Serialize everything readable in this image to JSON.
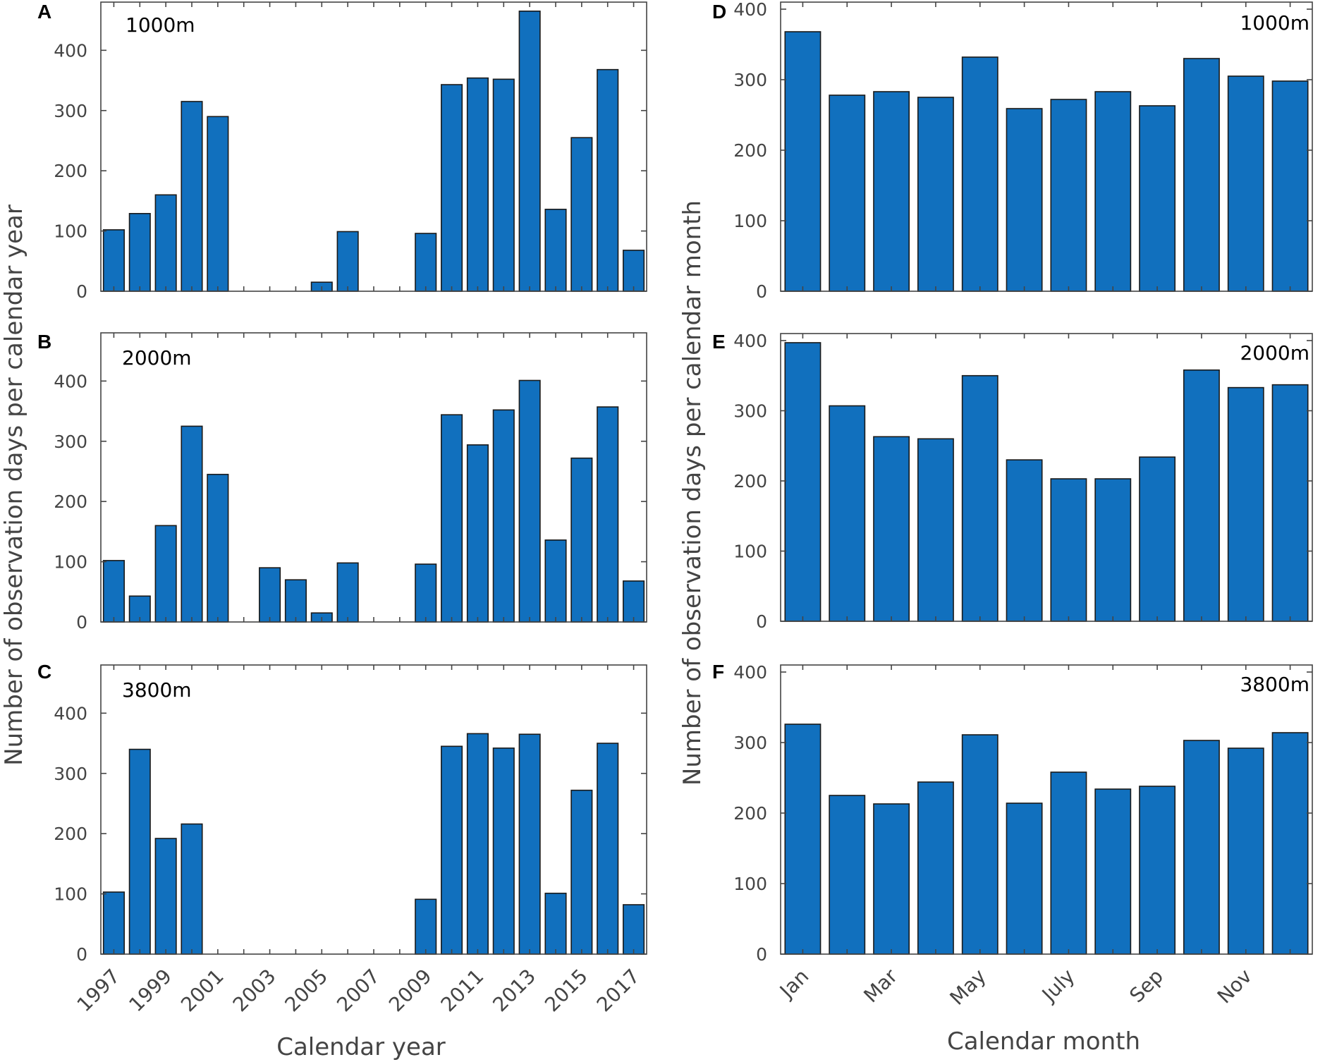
{
  "figure": {
    "left_ylabel": "Number of observation days per calendar year",
    "right_ylabel": "Number of observation days per calendar month",
    "left_xlabel": "Calendar year",
    "right_xlabel": "Calendar month"
  },
  "chart_data": [
    {
      "panel": "A",
      "type": "bar",
      "altitude": "1000m",
      "categories": [
        "1997",
        "1998",
        "1999",
        "2000",
        "2001",
        "2002",
        "2003",
        "2004",
        "2005",
        "2006",
        "2007",
        "2008",
        "2009",
        "2010",
        "2011",
        "2012",
        "2013",
        "2014",
        "2015",
        "2016",
        "2017"
      ],
      "tick_labels": [
        "1997",
        "1999",
        "2001",
        "2003",
        "2005",
        "2007",
        "2009",
        "2011",
        "2013",
        "2015",
        "2017"
      ],
      "values": [
        102,
        129,
        160,
        315,
        290,
        0,
        0,
        0,
        15,
        99,
        0,
        0,
        96,
        343,
        354,
        352,
        465,
        136,
        255,
        368,
        68
      ],
      "yticks": [
        0,
        100,
        200,
        300,
        400
      ],
      "ylim": [
        0,
        480
      ],
      "xlabel": "Calendar year",
      "ylabel": "Number of observation days per calendar year"
    },
    {
      "panel": "B",
      "type": "bar",
      "altitude": "2000m",
      "categories": [
        "1997",
        "1998",
        "1999",
        "2000",
        "2001",
        "2002",
        "2003",
        "2004",
        "2005",
        "2006",
        "2007",
        "2008",
        "2009",
        "2010",
        "2011",
        "2012",
        "2013",
        "2014",
        "2015",
        "2016",
        "2017"
      ],
      "tick_labels": [
        "1997",
        "1999",
        "2001",
        "2003",
        "2005",
        "2007",
        "2009",
        "2011",
        "2013",
        "2015",
        "2017"
      ],
      "values": [
        102,
        43,
        160,
        325,
        245,
        0,
        90,
        70,
        15,
        98,
        0,
        0,
        96,
        344,
        294,
        352,
        401,
        136,
        272,
        357,
        68
      ],
      "yticks": [
        0,
        100,
        200,
        300,
        400
      ],
      "ylim": [
        0,
        480
      ],
      "xlabel": "Calendar year",
      "ylabel": "Number of observation days per calendar year"
    },
    {
      "panel": "C",
      "type": "bar",
      "altitude": "3800m",
      "categories": [
        "1997",
        "1998",
        "1999",
        "2000",
        "2001",
        "2002",
        "2003",
        "2004",
        "2005",
        "2006",
        "2007",
        "2008",
        "2009",
        "2010",
        "2011",
        "2012",
        "2013",
        "2014",
        "2015",
        "2016",
        "2017"
      ],
      "tick_labels": [
        "1997",
        "1999",
        "2001",
        "2003",
        "2005",
        "2007",
        "2009",
        "2011",
        "2013",
        "2015",
        "2017"
      ],
      "values": [
        103,
        340,
        192,
        216,
        0,
        0,
        0,
        0,
        0,
        0,
        0,
        0,
        91,
        345,
        366,
        342,
        365,
        101,
        272,
        350,
        82
      ],
      "yticks": [
        0,
        100,
        200,
        300,
        400
      ],
      "ylim": [
        0,
        480
      ],
      "xlabel": "Calendar year",
      "ylabel": "Number of observation days per calendar year"
    },
    {
      "panel": "D",
      "type": "bar",
      "altitude": "1000m",
      "categories": [
        "Jan",
        "Feb",
        "Mar",
        "Apr",
        "May",
        "Jun",
        "July",
        "Aug",
        "Sep",
        "Oct",
        "Nov",
        "Dec"
      ],
      "tick_labels": [
        "Jan",
        "Mar",
        "May",
        "July",
        "Sep",
        "Nov"
      ],
      "values": [
        368,
        278,
        283,
        275,
        332,
        259,
        272,
        283,
        263,
        330,
        305,
        298
      ],
      "yticks": [
        0,
        100,
        200,
        300,
        400
      ],
      "ylim": [
        0,
        410
      ],
      "xlabel": "Calendar month",
      "ylabel": "Number of observation days per calendar month"
    },
    {
      "panel": "E",
      "type": "bar",
      "altitude": "2000m",
      "categories": [
        "Jan",
        "Feb",
        "Mar",
        "Apr",
        "May",
        "Jun",
        "July",
        "Aug",
        "Sep",
        "Oct",
        "Nov",
        "Dec"
      ],
      "tick_labels": [
        "Jan",
        "Mar",
        "May",
        "July",
        "Sep",
        "Nov"
      ],
      "values": [
        397,
        307,
        263,
        260,
        350,
        230,
        203,
        203,
        234,
        358,
        333,
        337
      ],
      "yticks": [
        0,
        100,
        200,
        300,
        400
      ],
      "ylim": [
        0,
        410
      ],
      "xlabel": "Calendar month",
      "ylabel": "Number of observation days per calendar month"
    },
    {
      "panel": "F",
      "type": "bar",
      "altitude": "3800m",
      "categories": [
        "Jan",
        "Feb",
        "Mar",
        "Apr",
        "May",
        "Jun",
        "July",
        "Aug",
        "Sep",
        "Oct",
        "Nov",
        "Dec"
      ],
      "tick_labels": [
        "Jan",
        "Mar",
        "May",
        "July",
        "Sep",
        "Nov"
      ],
      "values": [
        326,
        225,
        213,
        244,
        311,
        214,
        258,
        234,
        238,
        303,
        292,
        314
      ],
      "yticks": [
        0,
        100,
        200,
        300,
        400
      ],
      "ylim": [
        0,
        410
      ],
      "xlabel": "Calendar month",
      "ylabel": "Number of observation days per calendar month"
    }
  ],
  "colors": {
    "bar_fill": "#1170BE",
    "bar_stroke": "#1a1a1a",
    "axis": "#444444",
    "text": "#444444",
    "panel_letter": "#000000"
  }
}
